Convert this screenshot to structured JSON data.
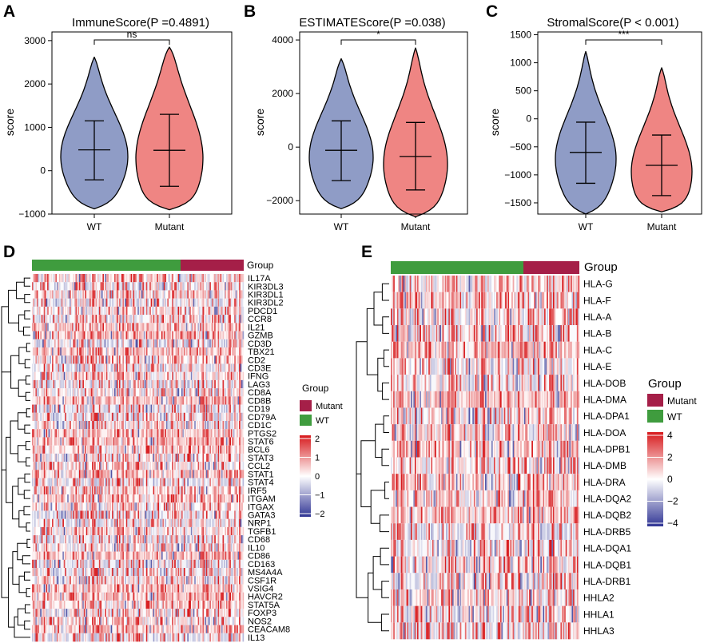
{
  "figure": {
    "panels": {
      "A": "A",
      "B": "B",
      "C": "C",
      "D": "D",
      "E": "E"
    }
  },
  "chart_data": [
    {
      "panel": "A",
      "type": "violin",
      "title": "ImmuneScore(P =0.4891)",
      "xlabel": "",
      "ylabel": "score",
      "ylim": [
        -1000,
        3200
      ],
      "yticks": [
        -1000,
        0,
        1000,
        2000,
        3000
      ],
      "categories": [
        "WT",
        "Mutant"
      ],
      "colors": [
        "#8f9cc6",
        "#ef8583"
      ],
      "significance": "ns",
      "series": [
        {
          "name": "WT",
          "median": 480,
          "q1": -210,
          "q3": 1150,
          "min": -880,
          "max": 2620
        },
        {
          "name": "Mutant",
          "median": 470,
          "q1": -360,
          "q3": 1300,
          "min": -900,
          "max": 2850
        }
      ]
    },
    {
      "panel": "B",
      "type": "violin",
      "title": "ESTIMATEScore(P =0.038)",
      "xlabel": "",
      "ylabel": "score",
      "ylim": [
        -2500,
        4300
      ],
      "yticks": [
        -2000,
        0,
        2000,
        4000
      ],
      "categories": [
        "WT",
        "Mutant"
      ],
      "colors": [
        "#8f9cc6",
        "#ef8583"
      ],
      "significance": "*",
      "series": [
        {
          "name": "WT",
          "median": -120,
          "q1": -1250,
          "q3": 980,
          "min": -2300,
          "max": 3300
        },
        {
          "name": "Mutant",
          "median": -350,
          "q1": -1600,
          "q3": 920,
          "min": -2600,
          "max": 3700
        }
      ]
    },
    {
      "panel": "C",
      "type": "violin",
      "title": "StromalScore(P < 0.001)",
      "xlabel": "",
      "ylabel": "score",
      "ylim": [
        -1700,
        1550
      ],
      "yticks": [
        -1500,
        -1000,
        -500,
        0,
        500,
        1000,
        1500
      ],
      "categories": [
        "WT",
        "Mutant"
      ],
      "colors": [
        "#8f9cc6",
        "#ef8583"
      ],
      "significance": "***",
      "series": [
        {
          "name": "WT",
          "median": -600,
          "q1": -1150,
          "q3": -60,
          "min": -1700,
          "max": 1200
        },
        {
          "name": "Mutant",
          "median": -830,
          "q1": -1370,
          "q3": -290,
          "min": -1660,
          "max": 910
        }
      ]
    },
    {
      "panel": "D",
      "type": "heatmap",
      "group_label": "Group",
      "rows": [
        "IL17A",
        "KIR3DL3",
        "KIR3DL1",
        "KIR3DL2",
        "PDCD1",
        "CCR8",
        "IL21",
        "GZMB",
        "CD3D",
        "TBX21",
        "CD2",
        "CD3E",
        "IFNG",
        "LAG3",
        "CD8A",
        "CD8B",
        "CD19",
        "CD79A",
        "CD1C",
        "PTGS2",
        "STAT6",
        "BCL6",
        "STAT3",
        "CCL2",
        "STAT1",
        "STAT4",
        "IRF5",
        "ITGAM",
        "ITGAX",
        "GATA3",
        "NRP1",
        "TGFB1",
        "CD68",
        "IL10",
        "CD86",
        "CD163",
        "MS4A4A",
        "CSF1R",
        "VSIG4",
        "HAVCR2",
        "STAT5A",
        "FOXP3",
        "NOS2",
        "CEACAM8",
        "IL13"
      ],
      "legend": {
        "title": "Group",
        "groups": [
          {
            "name": "Mutant",
            "color": "#a51f48"
          },
          {
            "name": "WT",
            "color": "#3f9c3e"
          }
        ],
        "scale_ticks": [
          "2",
          "1",
          "0",
          "−1",
          "−2"
        ],
        "low_color": "#313695",
        "mid_color": "#ffffff",
        "high_color": "#d7191c"
      }
    },
    {
      "panel": "E",
      "type": "heatmap",
      "group_label": "Group",
      "rows": [
        "HLA-G",
        "HLA-F",
        "HLA-A",
        "HLA-B",
        "HLA-C",
        "HLA-E",
        "HLA-DOB",
        "HLA-DMA",
        "HLA-DPA1",
        "HLA-DOA",
        "HLA-DPB1",
        "HLA-DMB",
        "HLA-DRA",
        "HLA-DQA2",
        "HLA-DQB2",
        "HLA-DRB5",
        "HLA-DQA1",
        "HLA-DQB1",
        "HLA-DRB1",
        "HHLA2",
        "HHLA1",
        "HHLA3"
      ],
      "legend": {
        "title": "Group",
        "groups": [
          {
            "name": "Mutant",
            "color": "#a51f48"
          },
          {
            "name": "WT",
            "color": "#3f9c3e"
          }
        ],
        "scale_ticks": [
          "4",
          "2",
          "0",
          "−2",
          "−4"
        ],
        "low_color": "#313695",
        "mid_color": "#ffffff",
        "high_color": "#d7191c"
      }
    }
  ]
}
